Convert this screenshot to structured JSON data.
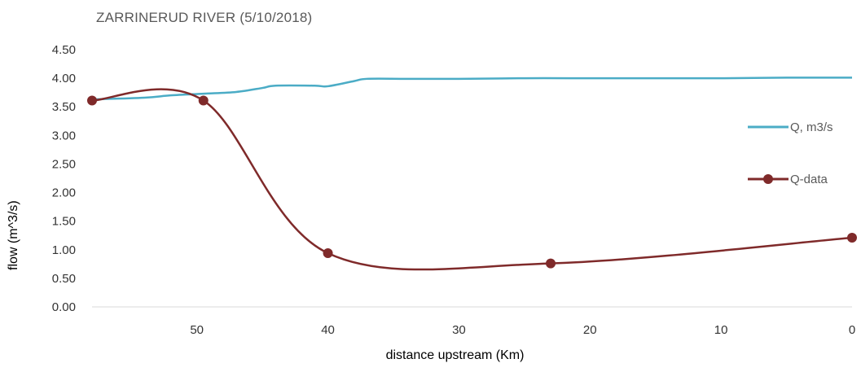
{
  "chart_data": {
    "type": "line",
    "title": "ZARRINERUD RIVER (5/10/2018)",
    "xlabel": "distance upstream (Km)",
    "ylabel": "flow (m^3/s)",
    "xlim": [
      58,
      0
    ],
    "ylim": [
      0,
      4.5
    ],
    "x_ticks": [
      "50",
      "40",
      "30",
      "20",
      "10",
      "0"
    ],
    "x_tick_values": [
      50,
      40,
      30,
      20,
      10,
      0
    ],
    "y_ticks": [
      "0.00",
      "0.50",
      "1.00",
      "1.50",
      "2.00",
      "2.50",
      "3.00",
      "3.50",
      "4.00",
      "4.50"
    ],
    "y_tick_values": [
      0,
      0.5,
      1,
      1.5,
      2,
      2.5,
      3,
      3.5,
      4,
      4.5
    ],
    "grid": false,
    "legend": "right",
    "series": [
      {
        "name": "Q, m3/s",
        "color": "#4bacc6",
        "marker": "none",
        "x": [
          58,
          54,
          52,
          49.5,
          47,
          45,
          44,
          41,
          40,
          38,
          37,
          34,
          30,
          25,
          20,
          15,
          10,
          5,
          0
        ],
        "y": [
          3.63,
          3.66,
          3.7,
          3.73,
          3.76,
          3.83,
          3.87,
          3.87,
          3.86,
          3.95,
          3.99,
          3.99,
          3.99,
          4.0,
          4.0,
          4.0,
          4.0,
          4.01,
          4.01
        ]
      },
      {
        "name": "Q-data",
        "color": "#7f2a2a",
        "marker": "circle",
        "x": [
          58,
          49.5,
          40,
          23,
          0
        ],
        "y": [
          3.61,
          3.61,
          0.94,
          0.76,
          1.21
        ]
      }
    ]
  }
}
